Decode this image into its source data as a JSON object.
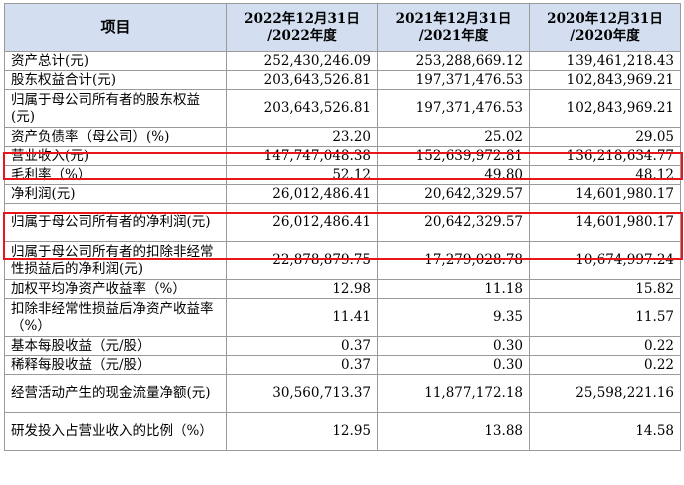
{
  "table": {
    "headers": {
      "item": "项目",
      "col2022": [
        "2022年12月31日",
        "/2022年度"
      ],
      "col2021": [
        "2021年12月31日",
        "/2021年度"
      ],
      "col2020": [
        "2020年12月31日",
        "/2020年度"
      ]
    },
    "rows": [
      {
        "label": "资产总计(元)",
        "v2022": "252,430,246.09",
        "v2021": "253,288,669.12",
        "v2020": "139,461,218.43"
      },
      {
        "label": "股东权益合计(元)",
        "v2022": "203,643,526.81",
        "v2021": "197,371,476.53",
        "v2020": "102,843,969.21"
      },
      {
        "label": "归属于母公司所有者的股东权益(元)",
        "v2022": "203,643,526.81",
        "v2021": "197,371,476.53",
        "v2020": "102,843,969.21"
      },
      {
        "label": "资产负债率（母公司）(%)",
        "v2022": "23.20",
        "v2021": "25.02",
        "v2020": "29.05"
      },
      {
        "label": "营业收入(元)",
        "v2022": "147,747,048.38",
        "v2021": "152,639,972.81",
        "v2020": "136,218,634.77"
      },
      {
        "label": "毛利率（%）",
        "v2022": "52.12",
        "v2021": "49.80",
        "v2020": "48.12"
      },
      {
        "label": "净利润(元)",
        "v2022": "26,012,486.41",
        "v2021": "20,642,329.57",
        "v2020": "14,601,980.17"
      },
      {
        "label": "归属于母公司所有者的净利润(元)",
        "v2022": "26,012,486.41",
        "v2021": "20,642,329.57",
        "v2020": "14,601,980.17"
      },
      {
        "label": "归属于母公司所有者的扣除非经常性损益后的净利润(元)",
        "v2022": "22,878,879.75",
        "v2021": "17,279,028.78",
        "v2020": "10,674,997.24"
      },
      {
        "label": "加权平均净资产收益率（%）",
        "v2022": "12.98",
        "v2021": "11.18",
        "v2020": "15.82"
      },
      {
        "label": "扣除非经常性损益后净资产收益率（%）",
        "v2022": "11.41",
        "v2021": "9.35",
        "v2020": "11.57"
      },
      {
        "label": "基本每股收益（元/股）",
        "v2022": "0.37",
        "v2021": "0.30",
        "v2020": "0.22"
      },
      {
        "label": "稀释每股收益（元/股）",
        "v2022": "0.37",
        "v2021": "0.30",
        "v2020": "0.22"
      },
      {
        "label": "经营活动产生的现金流量净额(元)",
        "v2022": "30,560,713.37",
        "v2021": "11,877,172.18",
        "v2020": "25,598,221.16"
      },
      {
        "label": "研发投入占营业收入的比例（%）",
        "v2022": "12.95",
        "v2021": "13.88",
        "v2020": "14.58"
      }
    ]
  },
  "highlight_color": "#e8151b"
}
